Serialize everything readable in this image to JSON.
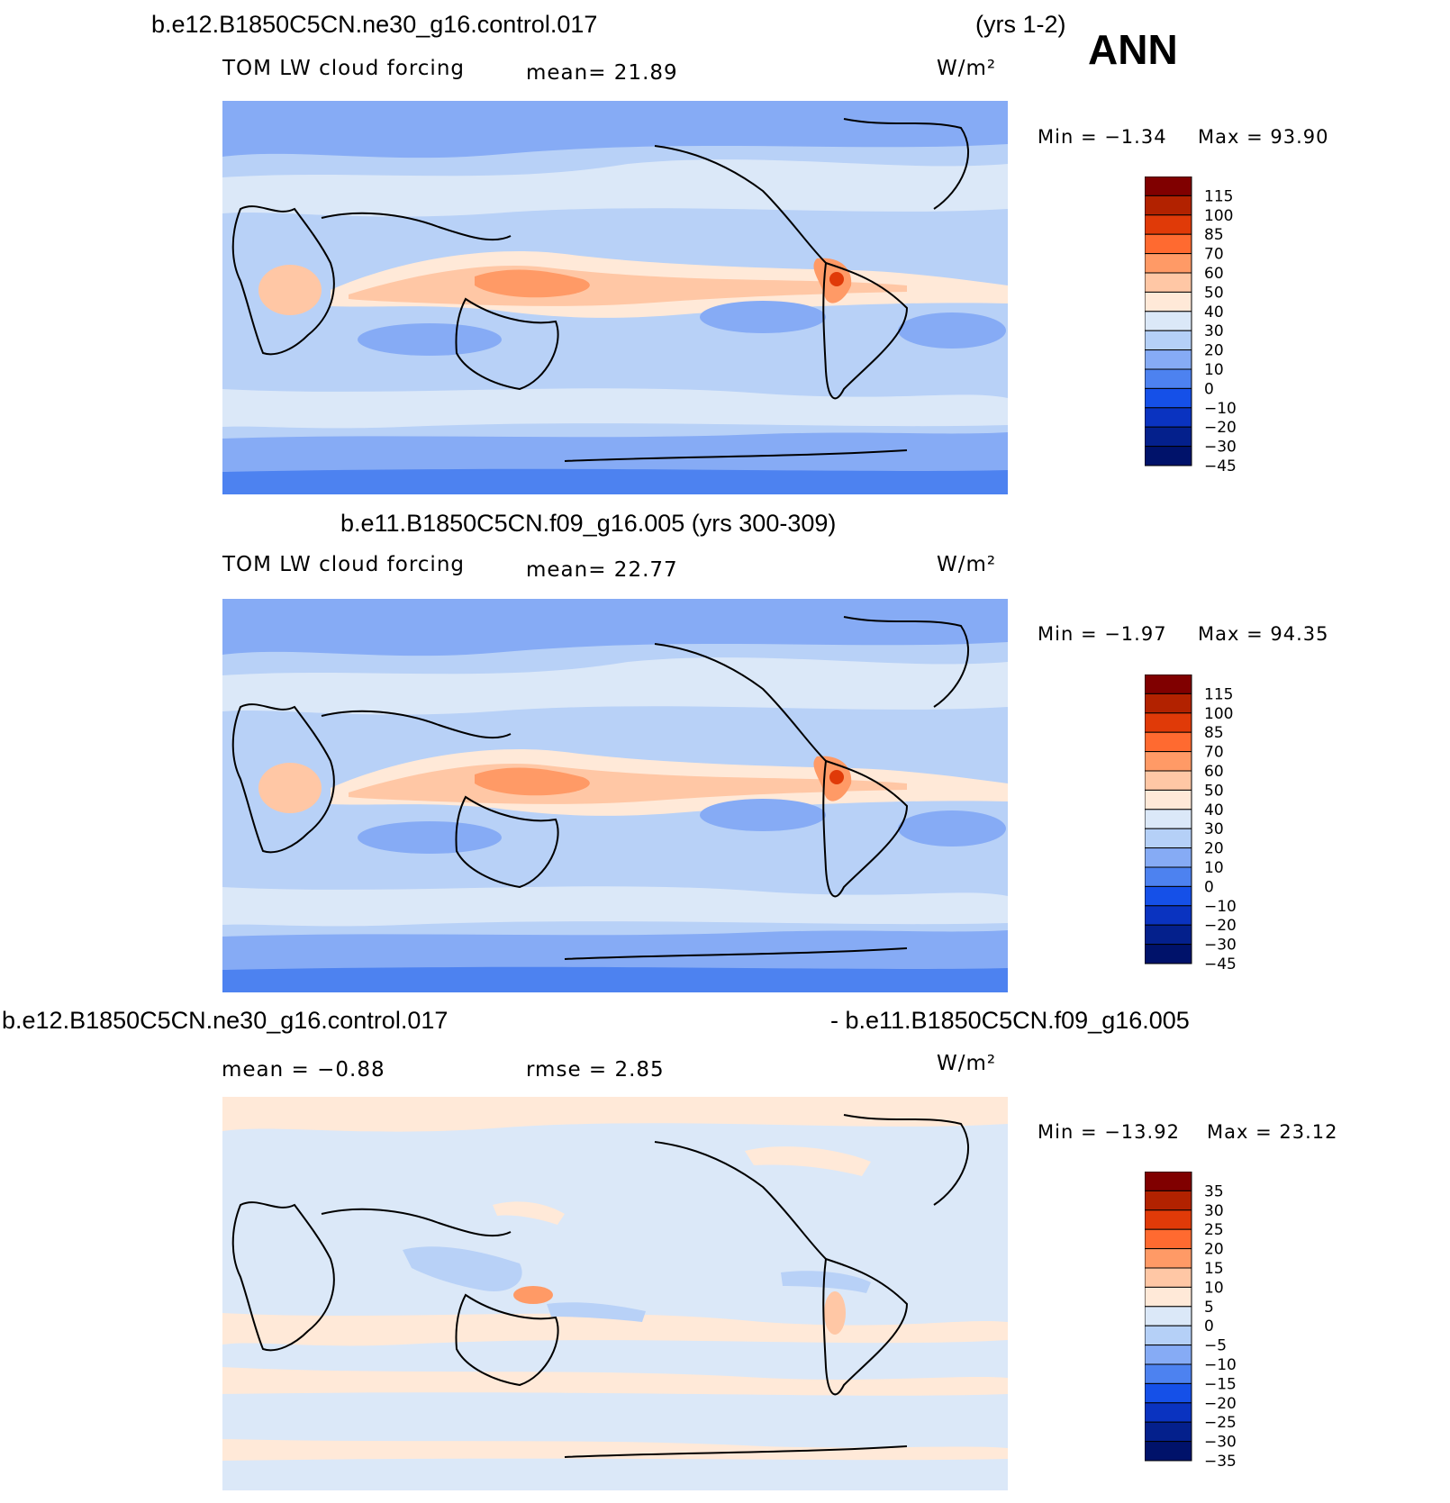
{
  "season": "ANN",
  "units_label": "W/m²",
  "panels": [
    {
      "title_left": "b.e12.B1850C5CN.ne30_g16.control.017",
      "title_right": "(yrs 1-2)",
      "variable": "TOM LW cloud forcing",
      "stat1": "mean=   21.89",
      "min_text": "Min  =   −1.34",
      "max_text": "Max  =   93.90",
      "colorbar": {
        "colors": [
          "#800000",
          "#b22200",
          "#e03a08",
          "#ff6a30",
          "#ff9a66",
          "#ffc7a5",
          "#ffe9d8",
          "#dbe8f8",
          "#b5d0f7",
          "#86abf5",
          "#4d82f0",
          "#1550e8",
          "#0a33c0",
          "#04208c",
          "#00126a"
        ],
        "labels": [
          "115",
          "100",
          "85",
          "70",
          "60",
          "50",
          "40",
          "30",
          "20",
          "10",
          "0",
          "−10",
          "−20",
          "−30",
          "−45"
        ]
      }
    },
    {
      "title_left": "b.e11.B1850C5CN.f09_g16.005 (yrs 300-309)",
      "variable": "TOM LW cloud forcing",
      "stat1": "mean=   22.77",
      "min_text": "Min  =   −1.97",
      "max_text": "Max  =   94.35",
      "colorbar": {
        "colors": [
          "#800000",
          "#b22200",
          "#e03a08",
          "#ff6a30",
          "#ff9a66",
          "#ffc7a5",
          "#ffe9d8",
          "#dbe8f8",
          "#b5d0f7",
          "#86abf5",
          "#4d82f0",
          "#1550e8",
          "#0a33c0",
          "#04208c",
          "#00126a"
        ],
        "labels": [
          "115",
          "100",
          "85",
          "70",
          "60",
          "50",
          "40",
          "30",
          "20",
          "10",
          "0",
          "−10",
          "−20",
          "−30",
          "−45"
        ]
      }
    },
    {
      "title_left": "b.e12.B1850C5CN.ne30_g16.control.017",
      "title_right": "- b.e11.B1850C5CN.f09_g16.005",
      "stat1": "mean  =   −0.88",
      "stat2": "rmse  =     2.85",
      "min_text": "Min  = −13.92",
      "max_text": "Max  =    23.12",
      "colorbar": {
        "colors": [
          "#800000",
          "#b22200",
          "#e03a08",
          "#ff6a30",
          "#ff9a66",
          "#ffc7a5",
          "#ffe9d8",
          "#dbe8f8",
          "#b5d0f7",
          "#86abf5",
          "#4d82f0",
          "#1550e8",
          "#0a33c0",
          "#04208c",
          "#00126a"
        ],
        "labels": [
          "35",
          "30",
          "25",
          "20",
          "15",
          "10",
          "5",
          "0",
          "−5",
          "−10",
          "−15",
          "−20",
          "−25",
          "−30",
          "−35"
        ]
      }
    }
  ]
}
